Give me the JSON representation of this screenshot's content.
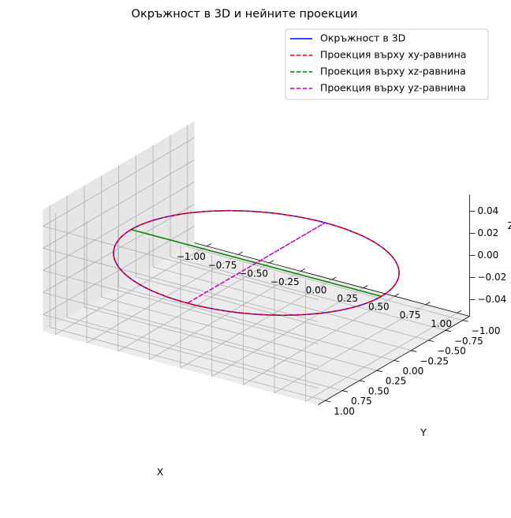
{
  "chart_data": {
    "type": "line",
    "projection": "3d",
    "title": "Окръжност в 3D и нейните проекции",
    "xlabel": "X",
    "ylabel": "Y",
    "zlabel": "Z",
    "xlim": [
      -1.1,
      1.1
    ],
    "ylim": [
      -1.1,
      1.1
    ],
    "zlim": [
      -0.055,
      0.055
    ],
    "x_ticks": [
      "−1.00",
      "−0.75",
      "−0.50",
      "−0.25",
      "0.00",
      "0.25",
      "0.50",
      "0.75",
      "1.00"
    ],
    "y_ticks": [
      "−1.00",
      "−0.75",
      "−0.50",
      "−0.25",
      "0.00",
      "0.25",
      "0.50",
      "0.75",
      "1.00"
    ],
    "z_ticks": [
      "−0.04",
      "−0.02",
      "0.00",
      "0.02",
      "0.04"
    ],
    "grid": true,
    "legend_position": "top-right",
    "series": [
      {
        "name": "Окръжност в 3D",
        "color": "#0000ff",
        "linestyle": "solid",
        "curve": "x = cos t, y = sin t, z = 0, t ∈ [0, 2π]"
      },
      {
        "name": "Проекция върху xy-равнина",
        "color": "#ff0000",
        "linestyle": "dashed",
        "curve": "x = cos t, y = sin t, z = 0"
      },
      {
        "name": "Проекция върху xz-равнина",
        "color": "#008000",
        "linestyle": "dashed",
        "curve": "x = cos t, y = 0, z = 0"
      },
      {
        "name": "Проекция върху yz-равнина",
        "color": "#bf00bf",
        "linestyle": "dashed",
        "curve": "x = 0, y = sin t, z = 0"
      }
    ]
  }
}
